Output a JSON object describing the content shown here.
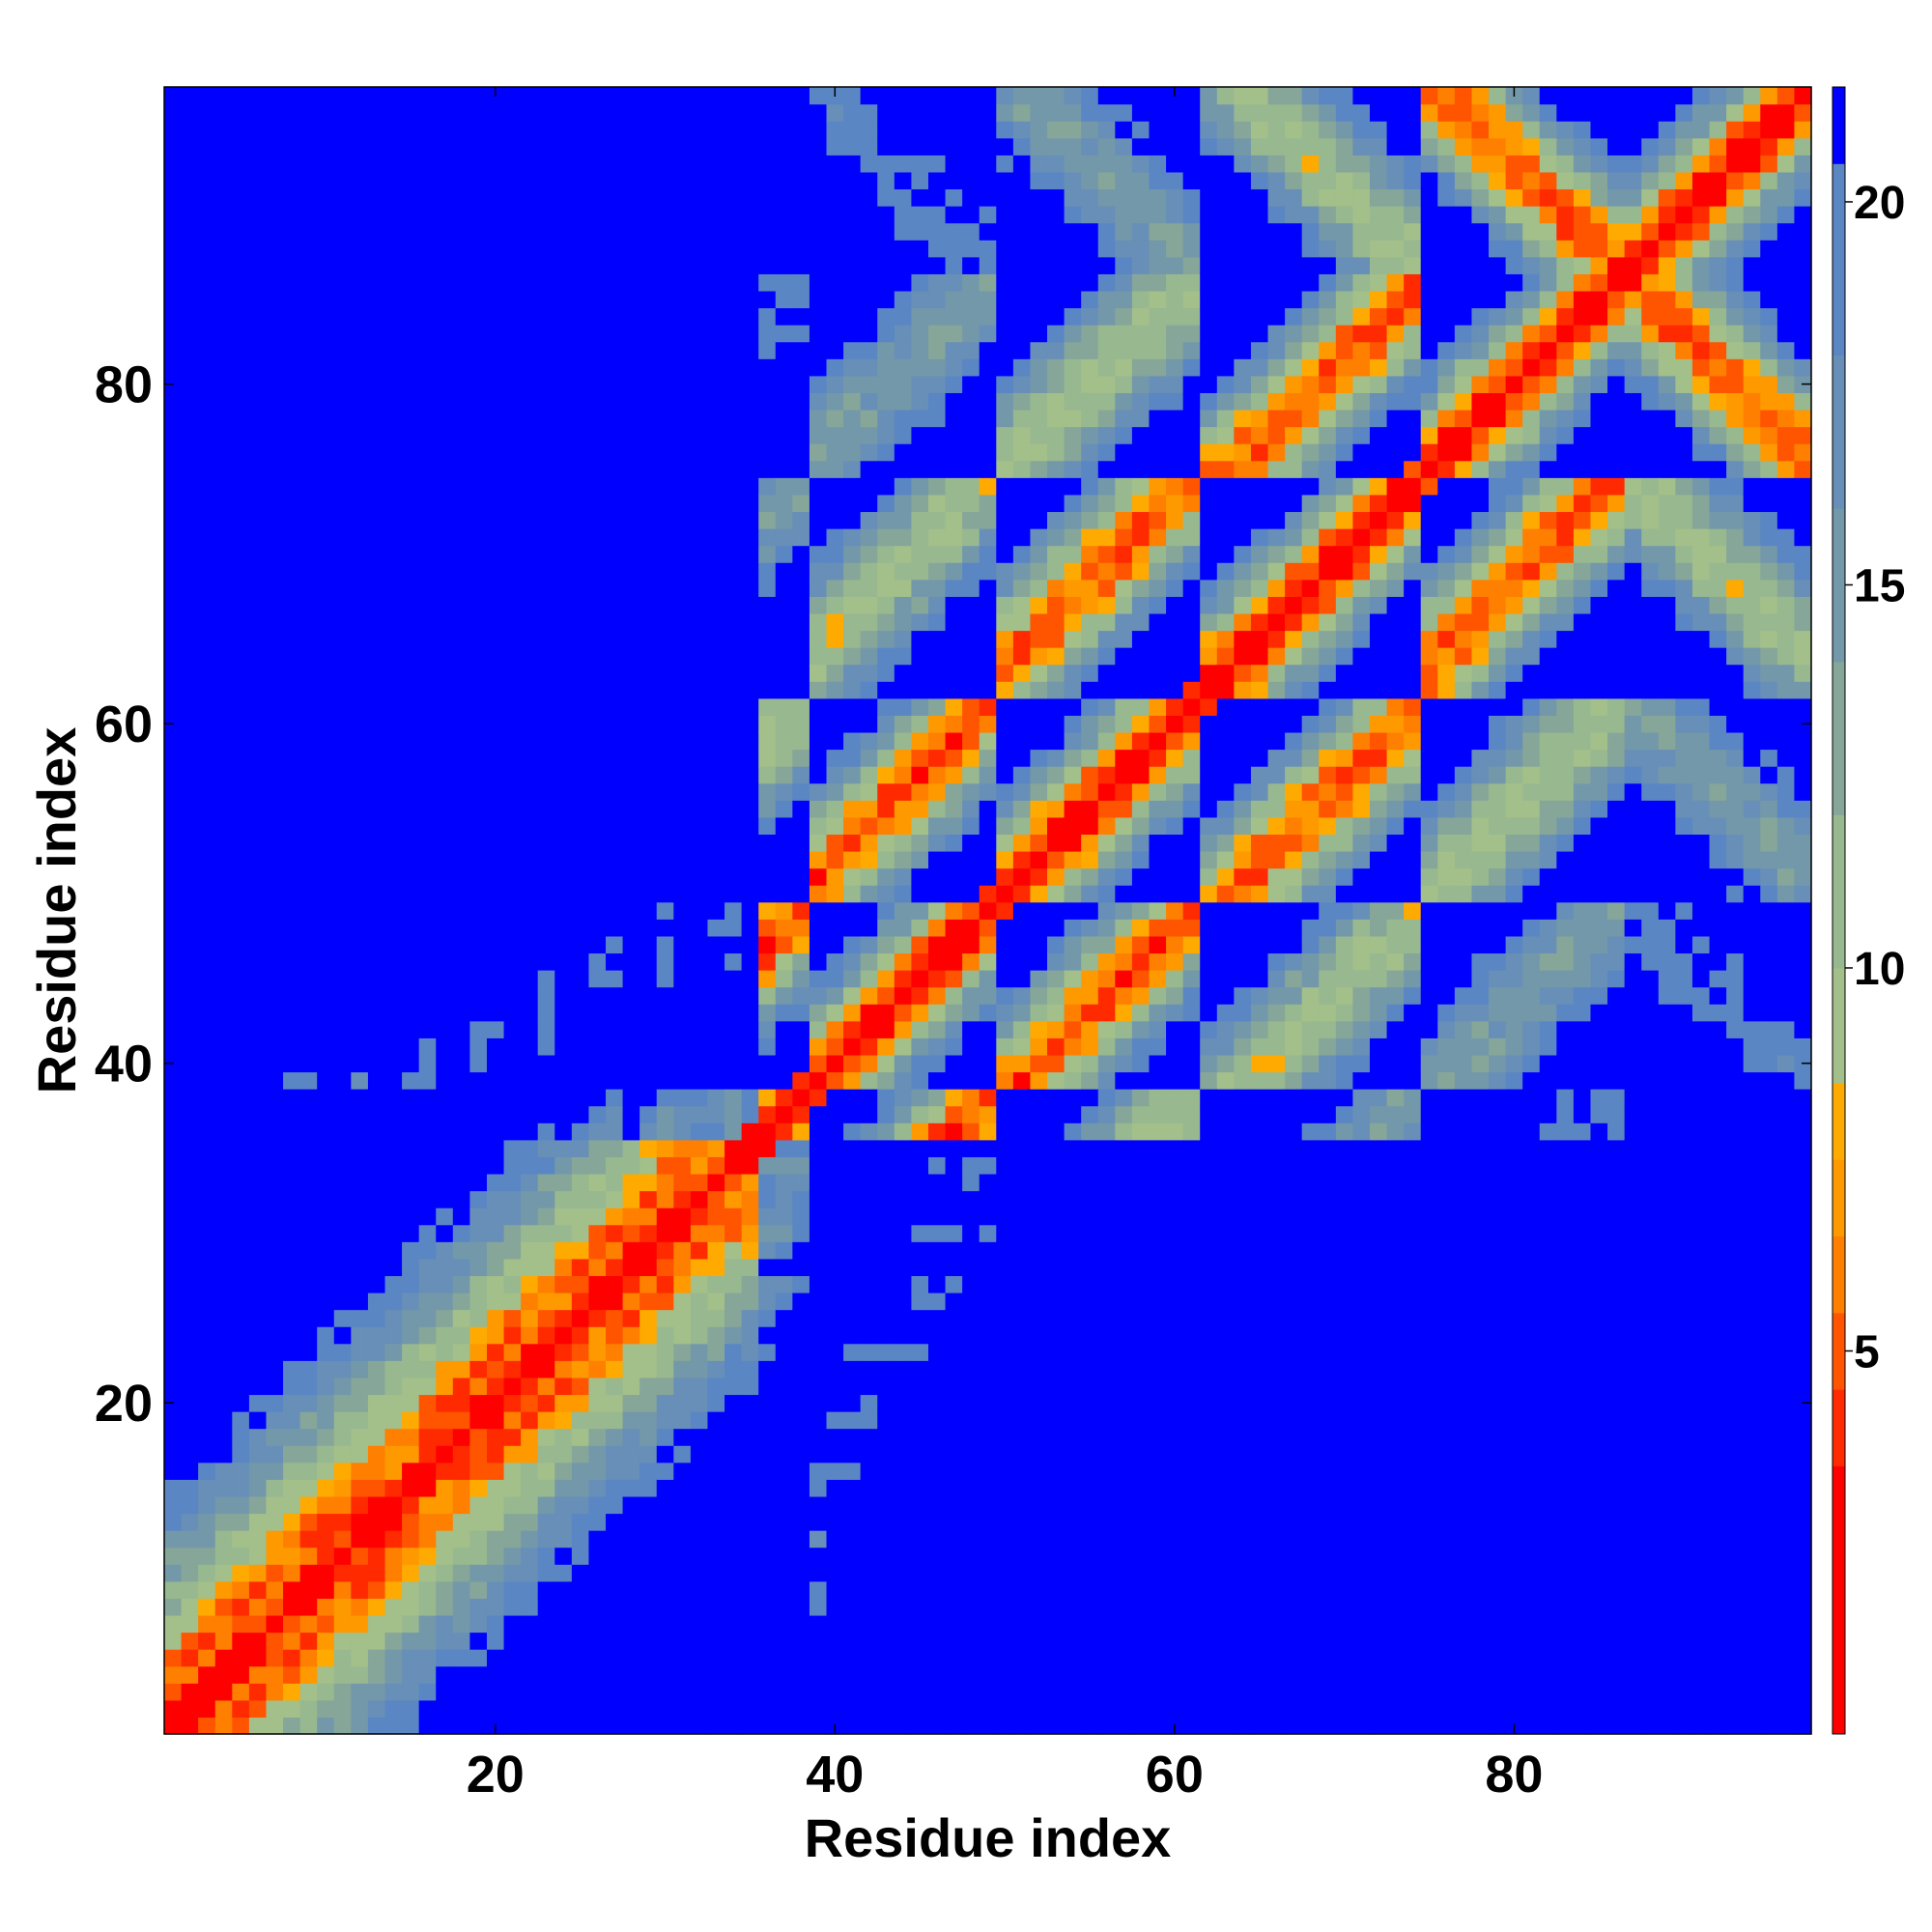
{
  "chart_data": {
    "type": "heatmap",
    "title": "",
    "xlabel": "Residue index",
    "ylabel": "Residue index",
    "n_residues": 97,
    "xlim": [
      1,
      97
    ],
    "ylim": [
      1,
      97
    ],
    "x_ticks": [
      20,
      40,
      60,
      80
    ],
    "y_ticks": [
      20,
      40,
      60,
      80
    ],
    "x_tick_labels": [
      "20",
      "40",
      "60",
      "80"
    ],
    "y_tick_labels": [
      "20",
      "40",
      "60",
      "80"
    ],
    "grid": false,
    "value_scale": {
      "min": 0,
      "max": 21.5,
      "clip_above": 20.5,
      "units": "distance"
    },
    "colorbar": {
      "ticks": [
        5,
        10,
        15,
        20
      ],
      "tick_labels": [
        "5",
        "10",
        "15",
        "20"
      ],
      "location": "right"
    },
    "color_bands": [
      {
        "max": 3.5,
        "color": "#ff0000"
      },
      {
        "max": 4.5,
        "color": "#ff2a00"
      },
      {
        "max": 5.5,
        "color": "#ff5500"
      },
      {
        "max": 6.5,
        "color": "#ff7f00"
      },
      {
        "max": 7.5,
        "color": "#ff9900"
      },
      {
        "max": 8.5,
        "color": "#ffaa00"
      },
      {
        "max": 10,
        "color": "#a3bf8a"
      },
      {
        "max": 12,
        "color": "#98b890"
      },
      {
        "max": 14,
        "color": "#86a699"
      },
      {
        "max": 16,
        "color": "#7398aa"
      },
      {
        "max": 18,
        "color": "#688fb7"
      },
      {
        "max": 20.5,
        "color": "#5b86c4"
      },
      {
        "max": 99,
        "color": "#0000ff"
      }
    ],
    "structure": {
      "helix_start": 1,
      "helix_end": 35,
      "helix_pitch": 2.5,
      "helix_neighbor_dist": 3.8,
      "hairpin_turns": [
        38.5,
        49.5,
        61.5,
        75,
        86.5
      ],
      "strand_spacing": 4.8,
      "strand_rise": 3.3,
      "fold_gap": 2.2
    }
  }
}
